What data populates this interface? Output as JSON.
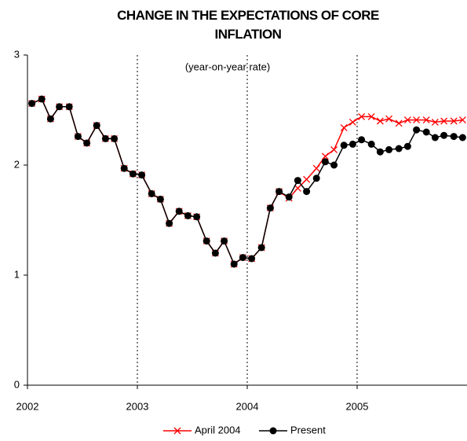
{
  "chart_data": {
    "type": "line",
    "title": "CHANGE IN THE EXPECTATIONS OF CORE INFLATION",
    "subtitle": "(year-on-year rate)",
    "x": [
      2002.04,
      2002.13,
      2002.21,
      2002.29,
      2002.38,
      2002.46,
      2002.54,
      2002.63,
      2002.71,
      2002.79,
      2002.88,
      2002.96,
      2003.04,
      2003.13,
      2003.21,
      2003.29,
      2003.38,
      2003.46,
      2003.54,
      2003.63,
      2003.71,
      2003.79,
      2003.88,
      2003.96,
      2004.04,
      2004.13,
      2004.21,
      2004.29,
      2004.38,
      2004.46,
      2004.54,
      2004.63,
      2004.71,
      2004.79,
      2004.88,
      2004.96,
      2005.04,
      2005.13,
      2005.21,
      2005.29,
      2005.38,
      2005.46,
      2005.54,
      2005.63,
      2005.71,
      2005.79,
      2005.88,
      2005.96
    ],
    "series": [
      {
        "name": "April 2004",
        "color": "#ff0000",
        "marker": "x",
        "values": [
          2.56,
          2.6,
          2.42,
          2.53,
          2.53,
          2.26,
          2.2,
          2.36,
          2.24,
          2.24,
          1.97,
          1.92,
          1.91,
          1.74,
          1.69,
          1.47,
          1.58,
          1.54,
          1.53,
          1.31,
          1.2,
          1.31,
          1.1,
          1.16,
          1.15,
          1.25,
          1.61,
          1.76,
          1.7,
          1.79,
          1.87,
          1.97,
          2.08,
          2.14,
          2.34,
          2.39,
          2.44,
          2.44,
          2.4,
          2.42,
          2.38,
          2.41,
          2.41,
          2.41,
          2.39,
          2.4,
          2.4,
          2.41
        ]
      },
      {
        "name": "Present",
        "color": "#000000",
        "marker": "circle",
        "values": [
          2.56,
          2.6,
          2.42,
          2.53,
          2.53,
          2.26,
          2.2,
          2.36,
          2.24,
          2.24,
          1.97,
          1.92,
          1.91,
          1.74,
          1.69,
          1.47,
          1.58,
          1.54,
          1.53,
          1.31,
          1.2,
          1.31,
          1.1,
          1.16,
          1.15,
          1.25,
          1.61,
          1.76,
          1.71,
          1.86,
          1.76,
          1.88,
          2.03,
          2.0,
          2.18,
          2.19,
          2.23,
          2.19,
          2.12,
          2.14,
          2.15,
          2.17,
          2.32,
          2.3,
          2.25,
          2.27,
          2.26,
          2.25
        ]
      }
    ],
    "xlim": [
      2002,
      2006
    ],
    "xticks": [
      2002,
      2003,
      2004,
      2005
    ],
    "ylim": [
      0,
      3
    ],
    "yticks": [
      0,
      1,
      2,
      3
    ],
    "grid": "x",
    "legend": "bottom"
  }
}
